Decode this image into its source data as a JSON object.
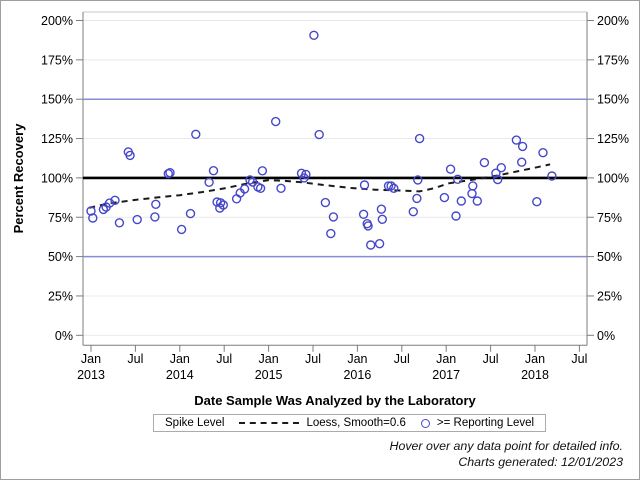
{
  "chart_data": {
    "type": "scatter",
    "title": "",
    "xlabel": "Date Sample Was Analyzed by the Laboratory",
    "ylabel": "Percent Recovery",
    "ylim": [
      0,
      200
    ],
    "grid": "horizontal",
    "y_ticks": [
      {
        "value": 0,
        "label": "0%"
      },
      {
        "value": 25,
        "label": "25%"
      },
      {
        "value": 50,
        "label": "50%"
      },
      {
        "value": 75,
        "label": "75%"
      },
      {
        "value": 100,
        "label": "100%"
      },
      {
        "value": 125,
        "label": "125%"
      },
      {
        "value": 150,
        "label": "150%"
      },
      {
        "value": 175,
        "label": "175%"
      },
      {
        "value": 200,
        "label": "200%"
      }
    ],
    "x_ticks": [
      {
        "x": 2013.0,
        "label": "Jan",
        "year": "2013"
      },
      {
        "x": 2013.5,
        "label": "Jul"
      },
      {
        "x": 2014.0,
        "label": "Jan",
        "year": "2014"
      },
      {
        "x": 2014.5,
        "label": "Jul"
      },
      {
        "x": 2015.0,
        "label": "Jan",
        "year": "2015"
      },
      {
        "x": 2015.5,
        "label": "Jul"
      },
      {
        "x": 2016.0,
        "label": "Jan",
        "year": "2016"
      },
      {
        "x": 2016.5,
        "label": "Jul"
      },
      {
        "x": 2017.0,
        "label": "Jan",
        "year": "2017"
      },
      {
        "x": 2017.5,
        "label": "Jul"
      },
      {
        "x": 2018.0,
        "label": "Jan",
        "year": "2018"
      },
      {
        "x": 2018.5,
        "label": "Jul"
      }
    ],
    "reference_lines": [
      {
        "y": 50,
        "name": "lower-limit-line",
        "style": "thin-blue"
      },
      {
        "y": 100,
        "name": "spike-level-line",
        "style": "thick-black"
      },
      {
        "y": 150,
        "name": "upper-limit-line",
        "style": "thin-blue"
      }
    ],
    "series": [
      {
        "name": ">= Reporting Level",
        "marker": "open-circle",
        "points": [
          [
            2013.0,
            79
          ],
          [
            2013.02,
            74.5
          ],
          [
            2013.14,
            80
          ],
          [
            2013.17,
            81.5
          ],
          [
            2013.21,
            84
          ],
          [
            2013.27,
            85.8
          ],
          [
            2013.32,
            71.5
          ],
          [
            2013.42,
            116.5
          ],
          [
            2013.44,
            114.3
          ],
          [
            2013.52,
            73.5
          ],
          [
            2013.72,
            75.2
          ],
          [
            2013.73,
            83.2
          ],
          [
            2013.87,
            102.7
          ],
          [
            2013.89,
            103.3
          ],
          [
            2014.02,
            67.3
          ],
          [
            2014.12,
            77.3
          ],
          [
            2014.18,
            127.7
          ],
          [
            2014.33,
            97.2
          ],
          [
            2014.38,
            104.6
          ],
          [
            2014.42,
            84.7
          ],
          [
            2014.45,
            80.9
          ],
          [
            2014.46,
            84.2
          ],
          [
            2014.49,
            82.8
          ],
          [
            2014.64,
            86.7
          ],
          [
            2014.68,
            90.5
          ],
          [
            2014.73,
            93
          ],
          [
            2014.79,
            98.7
          ],
          [
            2014.82,
            97.4
          ],
          [
            2014.88,
            94.3
          ],
          [
            2014.91,
            93.4
          ],
          [
            2014.93,
            104.5
          ],
          [
            2015.08,
            135.8
          ],
          [
            2015.14,
            93.4
          ],
          [
            2015.37,
            102.9
          ],
          [
            2015.4,
            100
          ],
          [
            2015.42,
            102.2
          ],
          [
            2015.51,
            190.6
          ],
          [
            2015.57,
            127.5
          ],
          [
            2015.64,
            84.3
          ],
          [
            2015.7,
            64.6
          ],
          [
            2015.73,
            75.2
          ],
          [
            2016.07,
            76.9
          ],
          [
            2016.08,
            95.5
          ],
          [
            2016.11,
            70.9
          ],
          [
            2016.12,
            69.5
          ],
          [
            2016.15,
            57.4
          ],
          [
            2016.25,
            58.2
          ],
          [
            2016.27,
            80.1
          ],
          [
            2016.28,
            73.7
          ],
          [
            2016.35,
            94.9
          ],
          [
            2016.38,
            94.9
          ],
          [
            2016.41,
            93.4
          ],
          [
            2016.63,
            78.5
          ],
          [
            2016.67,
            87
          ],
          [
            2016.68,
            98.7
          ],
          [
            2016.7,
            125
          ],
          [
            2016.98,
            87.5
          ],
          [
            2017.05,
            105.5
          ],
          [
            2017.11,
            75.8
          ],
          [
            2017.13,
            99.1
          ],
          [
            2017.17,
            85.3
          ],
          [
            2017.29,
            90
          ],
          [
            2017.3,
            94.9
          ],
          [
            2017.35,
            85.3
          ],
          [
            2017.43,
            109.7
          ],
          [
            2017.56,
            103
          ],
          [
            2017.58,
            99
          ],
          [
            2017.62,
            106.5
          ],
          [
            2017.79,
            124
          ],
          [
            2017.85,
            110
          ],
          [
            2017.86,
            120
          ],
          [
            2018.02,
            84.9
          ],
          [
            2018.09,
            116
          ],
          [
            2018.19,
            101.2
          ]
        ]
      },
      {
        "name": "Loess, Smooth=0.6",
        "marker": "dashed-line",
        "points": [
          [
            2012.98,
            81
          ],
          [
            2013.2,
            83.8
          ],
          [
            2013.5,
            86
          ],
          [
            2013.75,
            87.6
          ],
          [
            2014.0,
            89
          ],
          [
            2014.25,
            91
          ],
          [
            2014.5,
            93.3
          ],
          [
            2014.75,
            96.3
          ],
          [
            2015.0,
            98.6
          ],
          [
            2015.2,
            98.0
          ],
          [
            2015.37,
            97.2
          ],
          [
            2015.65,
            95.3
          ],
          [
            2015.93,
            93.6
          ],
          [
            2016.2,
            92.5
          ],
          [
            2016.5,
            91.9
          ],
          [
            2016.7,
            91.4
          ],
          [
            2016.86,
            93.4
          ],
          [
            2017.03,
            96.6
          ],
          [
            2017.2,
            98
          ],
          [
            2017.37,
            99.5
          ],
          [
            2017.6,
            101.8
          ],
          [
            2017.82,
            104.4
          ],
          [
            2018.0,
            106.5
          ],
          [
            2018.17,
            108.6
          ]
        ]
      }
    ],
    "legend": {
      "position": "bottom-center",
      "title": "Spike Level",
      "entries": [
        {
          "symbol": "dashed-line",
          "label": "Loess, Smooth=0.6"
        },
        {
          "symbol": "open-circle",
          "label": ">= Reporting Level"
        }
      ]
    }
  },
  "footer": {
    "line1": "Hover over any data point for detailed info.",
    "line2": "Charts generated: 12/01/2023"
  },
  "colors": {
    "marker": "#4547c9",
    "reference_blue": "#8a8bd6",
    "spike_black": "#000000",
    "loess": "#1a1a1a",
    "grid": "#e9e9e9",
    "axis": "#7d7d7d",
    "plot_border_top": "#c9c9c9",
    "text": "#000000"
  }
}
